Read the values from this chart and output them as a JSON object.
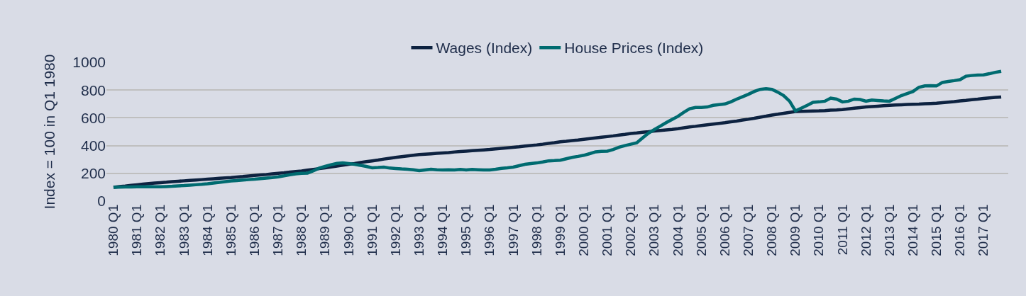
{
  "chart_data": {
    "type": "line",
    "ylabel": "Index = 100 in Q1 1980",
    "categories": [
      "1980 Q1",
      null,
      null,
      null,
      "1981 Q1",
      null,
      null,
      null,
      "1982 Q1",
      null,
      null,
      null,
      "1983 Q1",
      null,
      null,
      null,
      "1984 Q1",
      null,
      null,
      null,
      "1985 Q1",
      null,
      null,
      null,
      "1986 Q1",
      null,
      null,
      null,
      "1987 Q1",
      null,
      null,
      null,
      "1988 Q1",
      null,
      null,
      null,
      "1989 Q1",
      null,
      null,
      null,
      "1990 Q1",
      null,
      null,
      null,
      "1991 Q1",
      null,
      null,
      null,
      "1992 Q1",
      null,
      null,
      null,
      "1993 Q1",
      null,
      null,
      null,
      "1994 Q1",
      null,
      null,
      null,
      "1995 Q1",
      null,
      null,
      null,
      "1996 Q1",
      null,
      null,
      null,
      "1997 Q1",
      null,
      null,
      null,
      "1998 Q1",
      null,
      null,
      null,
      "1999 Q1",
      null,
      null,
      null,
      "2000 Q1",
      null,
      null,
      null,
      "2001 Q1",
      null,
      null,
      null,
      "2002 Q1",
      null,
      null,
      null,
      "2003 Q1",
      null,
      null,
      null,
      "2004 Q1",
      null,
      null,
      null,
      "2005 Q1",
      null,
      null,
      null,
      "2006 Q1",
      null,
      null,
      null,
      "2007 Q1",
      null,
      null,
      null,
      "2008 Q1",
      null,
      null,
      null,
      "2009 Q1",
      null,
      null,
      null,
      "2010 Q1",
      null,
      null,
      null,
      "2011 Q1",
      null,
      null,
      null,
      "2012 Q1",
      null,
      null,
      null,
      "2013 Q1",
      null,
      null,
      null,
      "2014 Q1",
      null,
      null,
      null,
      "2015 Q1",
      null,
      null,
      null,
      "2016 Q1",
      null,
      null,
      null,
      "2017 Q1",
      null,
      null,
      null
    ],
    "series": [
      {
        "name": "Wages (Index)",
        "color": "#0d2240",
        "values": [
          100,
          105,
          109,
          114,
          118,
          122,
          126,
          130,
          133,
          136,
          140,
          143,
          146,
          149,
          152,
          155,
          158,
          161,
          164,
          167,
          170,
          174,
          177,
          181,
          185,
          189,
          192,
          196,
          200,
          204,
          209,
          213,
          217,
          223,
          229,
          234,
          240,
          246,
          253,
          259,
          265,
          271,
          278,
          284,
          290,
          296,
          303,
          309,
          315,
          320,
          325,
          330,
          335,
          338,
          341,
          344,
          347,
          350,
          354,
          357,
          360,
          363,
          366,
          369,
          372,
          376,
          380,
          384,
          388,
          392,
          397,
          401,
          405,
          410,
          416,
          421,
          427,
          431,
          436,
          440,
          445,
          450,
          455,
          460,
          465,
          470,
          476,
          481,
          487,
          491,
          496,
          500,
          505,
          509,
          513,
          517,
          522,
          528,
          534,
          539,
          545,
          550,
          555,
          560,
          565,
          571,
          577,
          584,
          590,
          597,
          605,
          612,
          620,
          626,
          633,
          639,
          645,
          647,
          648,
          649,
          650,
          652,
          655,
          657,
          660,
          665,
          670,
          674,
          678,
          681,
          684,
          687,
          690,
          692,
          694,
          696,
          698,
          699,
          701,
          703,
          705,
          709,
          713,
          717,
          722,
          726,
          731,
          735,
          740,
          744,
          747,
          750
        ]
      },
      {
        "name": "House Prices (Index)",
        "color": "#006b70",
        "values": [
          100,
          101,
          102,
          102,
          103,
          103,
          104,
          103,
          103,
          105,
          107,
          110,
          112,
          115,
          118,
          121,
          125,
          130,
          135,
          140,
          145,
          148,
          152,
          155,
          158,
          162,
          166,
          170,
          175,
          182,
          190,
          196,
          200,
          202,
          218,
          238,
          250,
          262,
          272,
          275,
          270,
          265,
          258,
          250,
          240,
          242,
          245,
          238,
          235,
          232,
          230,
          226,
          220,
          225,
          230,
          226,
          225,
          226,
          225,
          228,
          225,
          228,
          226,
          224,
          225,
          230,
          236,
          240,
          245,
          255,
          265,
          270,
          275,
          282,
          290,
          292,
          295,
          305,
          315,
          322,
          330,
          342,
          355,
          358,
          360,
          372,
          388,
          400,
          410,
          420,
          455,
          490,
          515,
          540,
          565,
          588,
          610,
          640,
          665,
          675,
          675,
          678,
          690,
          695,
          700,
          715,
          735,
          752,
          770,
          790,
          805,
          810,
          805,
          785,
          760,
          720,
          650,
          670,
          690,
          712,
          715,
          720,
          742,
          735,
          715,
          720,
          735,
          732,
          720,
          728,
          725,
          722,
          720,
          740,
          760,
          775,
          790,
          820,
          830,
          832,
          830,
          855,
          862,
          868,
          875,
          900,
          905,
          908,
          910,
          918,
          928,
          935
        ]
      }
    ],
    "ylim": [
      0,
      1000
    ],
    "yticks": [
      0,
      200,
      400,
      600,
      800,
      1000
    ],
    "grid": "y",
    "legend": "top",
    "marker": "none",
    "line_style": "solid"
  }
}
